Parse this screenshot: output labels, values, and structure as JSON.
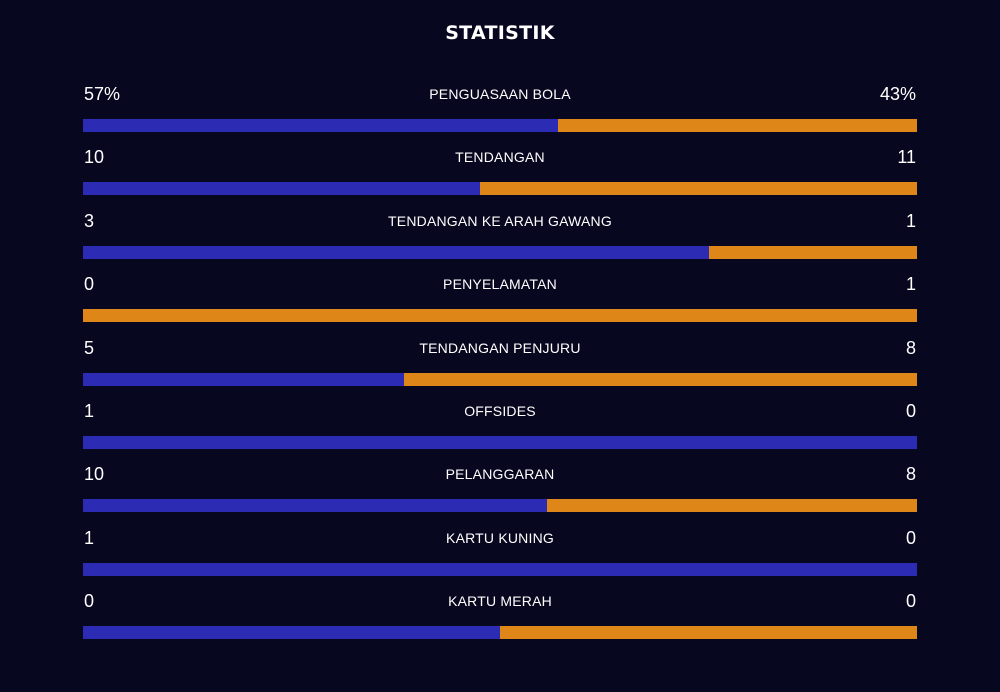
{
  "title": "STATISTIK",
  "colors": {
    "home": "#2c2bb3",
    "away": "#df8618",
    "background": "#07071f"
  },
  "stats": [
    {
      "label": "PENGUASAAN BOLA",
      "home": "57%",
      "away": "43%",
      "home_share": 0.57
    },
    {
      "label": "TENDANGAN",
      "home": "10",
      "away": "11",
      "home_share": 0.476
    },
    {
      "label": "TENDANGAN KE ARAH GAWANG",
      "home": "3",
      "away": "1",
      "home_share": 0.75
    },
    {
      "label": "PENYELAMATAN",
      "home": "0",
      "away": "1",
      "home_share": 0
    },
    {
      "label": "TENDANGAN PENJURU",
      "home": "5",
      "away": "8",
      "home_share": 0.385
    },
    {
      "label": "OFFSIDES",
      "home": "1",
      "away": "0",
      "home_share": 1
    },
    {
      "label": "PELANGGARAN",
      "home": "10",
      "away": "8",
      "home_share": 0.556
    },
    {
      "label": "KARTU KUNING",
      "home": "1",
      "away": "0",
      "home_share": 1
    },
    {
      "label": "KARTU MERAH",
      "home": "0",
      "away": "0",
      "home_share": 0.5
    }
  ]
}
